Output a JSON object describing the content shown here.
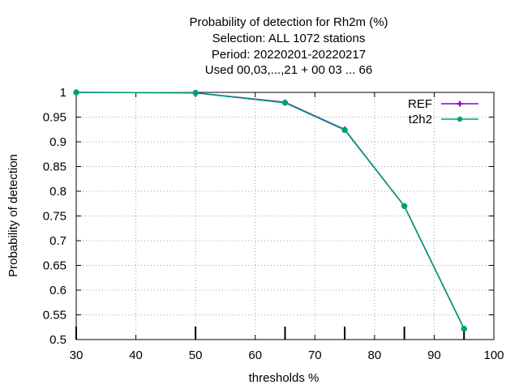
{
  "chart_data": {
    "type": "line",
    "title_lines": [
      "Probability of detection  for Rh2m (%)",
      "Selection: ALL   1072 stations",
      "Period: 20220201-20220217",
      "Used  00,03,...,21  + 00 03 ... 66"
    ],
    "xlabel": "thresholds %",
    "ylabel": "Probability of detection",
    "xlim": [
      30,
      100
    ],
    "ylim": [
      0.5,
      1.0
    ],
    "xticks": [
      30,
      40,
      50,
      60,
      70,
      80,
      90,
      100
    ],
    "yticks": [
      0.5,
      0.55,
      0.6,
      0.65,
      0.7,
      0.75,
      0.8,
      0.85,
      0.9,
      0.95,
      1.0
    ],
    "ytick_labels": [
      "0.5",
      "0.55",
      "0.6",
      "0.65",
      "0.7",
      "0.75",
      "0.8",
      "0.85",
      "0.9",
      "0.95",
      "1"
    ],
    "threshold_marks": [
      30,
      50,
      65,
      75,
      85,
      95
    ],
    "grid": true,
    "legend_position": "top-right",
    "x": [
      30,
      50,
      65,
      75,
      85,
      95
    ],
    "series": [
      {
        "name": "REF",
        "color": "#9400d3",
        "values": [
          1.0,
          0.999,
          0.98,
          0.925,
          0.77,
          0.522
        ]
      },
      {
        "name": "t2h2",
        "color": "#009e73",
        "values": [
          1.0,
          0.999,
          0.979,
          0.924,
          0.77,
          0.522
        ]
      }
    ]
  }
}
